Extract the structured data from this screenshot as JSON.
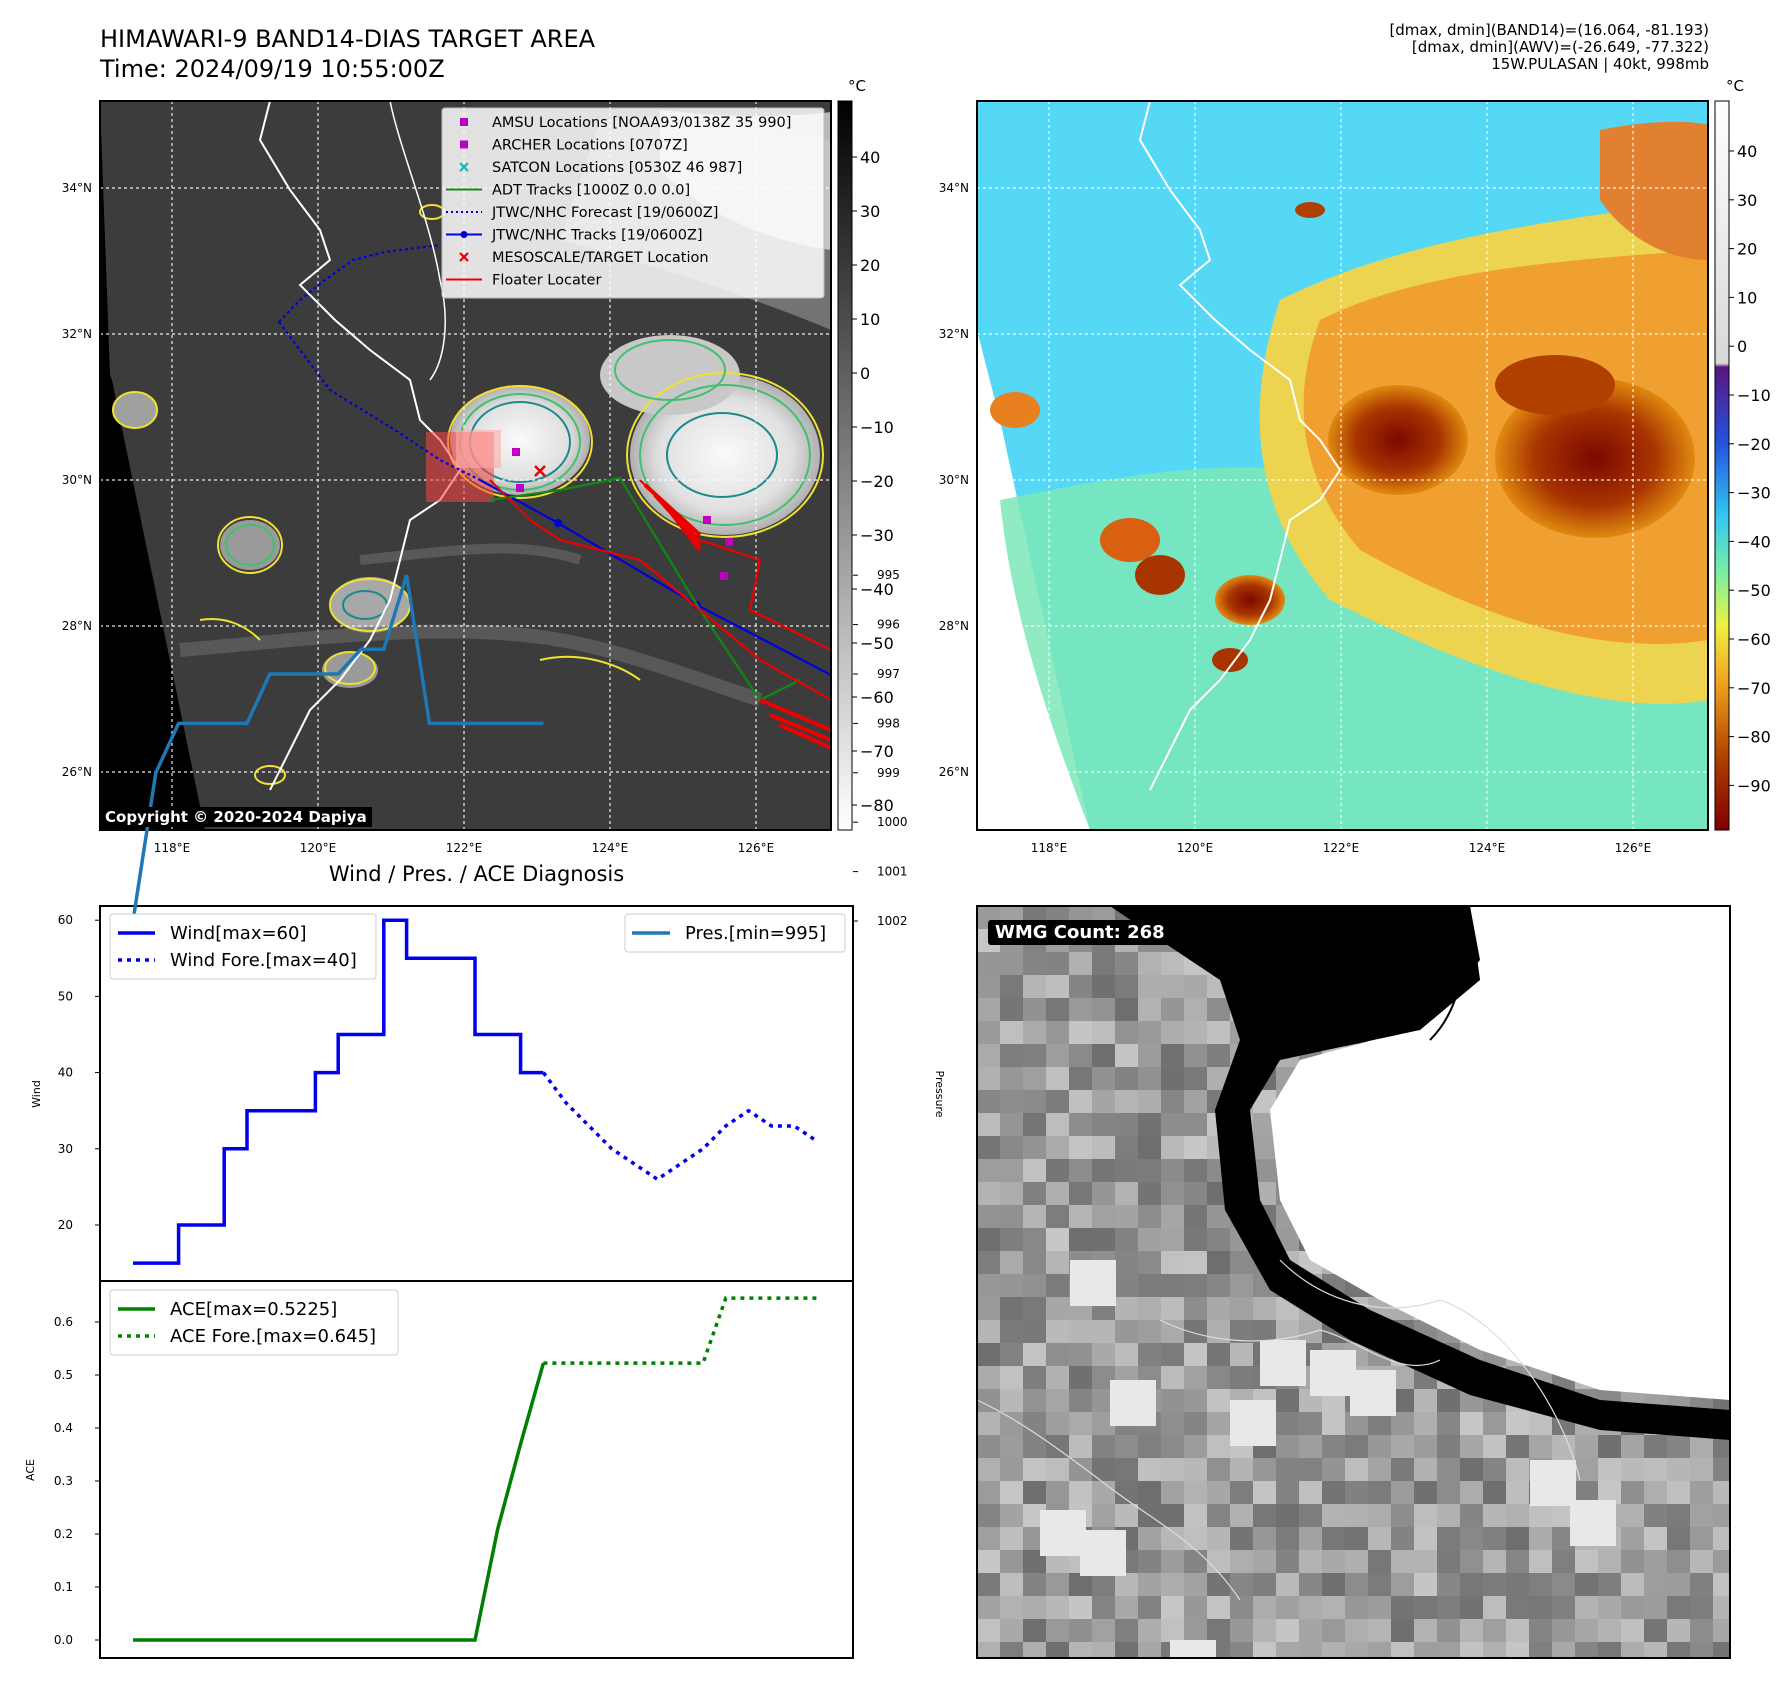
{
  "header": {
    "title_line1": "HIMAWARI-9 BAND14-DIAS TARGET AREA",
    "title_line2": "Time: 2024/09/19 10:55:00Z",
    "meta_line1": "[dmax, dmin](BAND14)=(16.064, -81.193)",
    "meta_line2": "[dmax, dmin](AWV)=(-26.649, -77.322)",
    "meta_line3": "15W.PULASAN | 40kt, 998mb"
  },
  "copyright": "Copyright © 2020-2024 Dapiya",
  "wmg_count": "WMG Count: 268",
  "diagnosis_title": "Wind / Pres. / ACE Diagnosis",
  "colorbar_unit": "°C",
  "map_axes": {
    "lon_ticks": [
      "118°E",
      "120°E",
      "122°E",
      "124°E",
      "126°E"
    ],
    "lat_ticks": [
      "34°N",
      "32°N",
      "30°N",
      "28°N",
      "26°N"
    ]
  },
  "legend": [
    {
      "label": "AMSU Locations [NOAA93/0138Z 35 990]",
      "color": "#c000c0",
      "marker": "square"
    },
    {
      "label": "ARCHER Locations [0707Z]",
      "color": "#c000c0",
      "marker": "square"
    },
    {
      "label": "SATCON Locations [0530Z 46 987]",
      "color": "#17b5b5",
      "marker": "x"
    },
    {
      "label": "ADT Tracks [1000Z 0.0 0.0]",
      "color": "#118811",
      "marker": "line"
    },
    {
      "label": "JTWC/NHC Forecast [19/0600Z]",
      "color": "#0000dd",
      "marker": "dotted"
    },
    {
      "label": "JTWC/NHC Tracks [19/0600Z]",
      "color": "#0000dd",
      "marker": "line-dot"
    },
    {
      "label": "MESOSCALE/TARGET Location",
      "color": "#ee0000",
      "marker": "x"
    },
    {
      "label": "Floater Locater",
      "color": "#ee0000",
      "marker": "line"
    }
  ],
  "colorbar_gray": {
    "ticks": [
      "40",
      "30",
      "20",
      "10",
      "0",
      "−10",
      "−20",
      "−30",
      "−40",
      "−50",
      "−60",
      "−70",
      "−80"
    ]
  },
  "colorbar_color": {
    "ticks": [
      "40",
      "30",
      "20",
      "10",
      "0",
      "−10",
      "−20",
      "−30",
      "−40",
      "−50",
      "−60",
      "−70",
      "−80",
      "−90"
    ]
  },
  "chart_data": [
    {
      "type": "line",
      "panel": "wind-pressure",
      "ylabel_left": "Wind",
      "ylabel_right": "Pressure",
      "legend_left": [
        "Wind[max=60]",
        "Wind Fore.[max=40]"
      ],
      "legend_right": [
        "Pres.[min=995]"
      ],
      "yticks_left": [
        20,
        30,
        40,
        50,
        60
      ],
      "yticks_right": [
        995,
        996,
        997,
        998,
        999,
        1000,
        1001,
        1002
      ],
      "series": [
        {
          "name": "Wind[max=60]",
          "color": "#0000ee",
          "style": "solid",
          "x": [
            0,
            1,
            2,
            3,
            4,
            5,
            6,
            7,
            8,
            9,
            10,
            11,
            12,
            13,
            14,
            15,
            16,
            17,
            18
          ],
          "values": [
            15,
            15,
            20,
            20,
            30,
            35,
            35,
            35,
            40,
            45,
            45,
            60,
            55,
            55,
            55,
            45,
            45,
            40,
            40
          ]
        },
        {
          "name": "Wind Fore.[max=40]",
          "color": "#0000ee",
          "style": "dotted",
          "x": [
            18,
            19,
            20,
            21,
            22,
            23,
            24,
            25,
            26,
            27,
            28,
            29,
            30
          ],
          "values": [
            40,
            36,
            33,
            30,
            28,
            26,
            28,
            30,
            33,
            35,
            33,
            33,
            31
          ]
        },
        {
          "name": "Pres.[min=995]",
          "color": "#1f77b4",
          "style": "solid",
          "x": [
            0,
            1,
            2,
            3,
            4,
            5,
            6,
            7,
            8,
            9,
            10,
            11,
            12,
            13,
            14,
            15,
            16,
            17,
            18
          ],
          "values": [
            1002,
            999,
            998,
            998,
            998,
            998,
            997,
            997,
            997,
            997,
            996.5,
            996.5,
            995,
            998,
            998,
            998,
            998,
            998,
            998
          ]
        }
      ]
    },
    {
      "type": "line",
      "panel": "ace",
      "ylabel": "ACE",
      "legend": [
        "ACE[max=0.5225]",
        "ACE Fore.[max=0.645]"
      ],
      "yticks": [
        0.0,
        0.1,
        0.2,
        0.3,
        0.4,
        0.5,
        0.6
      ],
      "series": [
        {
          "name": "ACE[max=0.5225]",
          "color": "#008000",
          "style": "solid",
          "x": [
            0,
            1,
            2,
            3,
            4,
            5,
            6,
            7,
            8,
            9,
            10,
            11,
            12,
            13,
            14,
            15,
            16,
            17,
            18
          ],
          "values": [
            0,
            0,
            0,
            0,
            0,
            0,
            0,
            0,
            0,
            0,
            0,
            0,
            0,
            0,
            0,
            0,
            0.21,
            0.37,
            0.5225
          ]
        },
        {
          "name": "ACE Fore.[max=0.645]",
          "color": "#008000",
          "style": "dotted",
          "x": [
            18,
            19,
            20,
            21,
            22,
            23,
            24,
            25,
            26,
            27,
            28,
            29,
            30
          ],
          "values": [
            0.5225,
            0.5225,
            0.5225,
            0.5225,
            0.5225,
            0.5225,
            0.5225,
            0.5225,
            0.645,
            0.645,
            0.645,
            0.645,
            0.645
          ]
        }
      ]
    }
  ]
}
